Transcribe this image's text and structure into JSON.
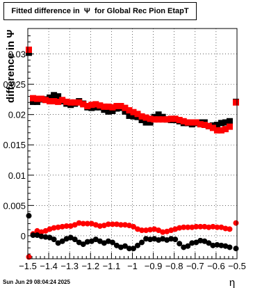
{
  "title": {
    "prefix": "Fitted difference in",
    "symbol": "Ψ",
    "suffix": "for Global Rec Pion EtapT"
  },
  "timestamp": "Sun Jun 29 08:04:24 2025",
  "chart_data": {
    "type": "scatter",
    "xlabel": "η",
    "ylabel": "difference in Ψ",
    "xlim": [
      -1.5,
      -0.5
    ],
    "ylim": [
      -0.0038,
      0.0342
    ],
    "x_ticks": [
      -1.5,
      -1.4,
      -1.3,
      -1.2,
      -1.1,
      -1.0,
      -0.9,
      -0.8,
      -0.7,
      -0.6,
      -0.5
    ],
    "x_tick_labels": [
      "−1.5",
      "−1.4",
      "−1.3",
      "−1.2",
      "−1.1",
      "−1",
      "−0.9",
      "−0.8",
      "−0.7",
      "−0.6",
      "−0.5"
    ],
    "y_ticks": [
      0,
      0.005,
      0.01,
      0.015,
      0.02,
      0.025,
      0.03
    ],
    "y_tick_labels": [
      "0",
      "0.005",
      "0.01",
      "0.015",
      "0.02",
      "0.025",
      "0.03"
    ],
    "grid": true,
    "series": [
      {
        "color": "#000000",
        "marker": "square",
        "x": [
          -1.495,
          -1.475,
          -1.455,
          -1.435,
          -1.415,
          -1.395,
          -1.375,
          -1.355,
          -1.335,
          -1.315,
          -1.295,
          -1.275,
          -1.255,
          -1.235,
          -1.215,
          -1.195,
          -1.175,
          -1.155,
          -1.135,
          -1.115,
          -1.095,
          -1.075,
          -1.055,
          -1.035,
          -1.015,
          -0.995,
          -0.975,
          -0.955,
          -0.935,
          -0.915,
          -0.895,
          -0.875,
          -0.855,
          -0.835,
          -0.815,
          -0.795,
          -0.775,
          -0.755,
          -0.735,
          -0.715,
          -0.695,
          -0.675,
          -0.655,
          -0.635,
          -0.615,
          -0.595,
          -0.575,
          -0.555,
          -0.535,
          -0.505
        ],
        "y": [
          0.0302,
          0.0221,
          0.0221,
          0.0225,
          0.0225,
          0.0228,
          0.0232,
          0.023,
          0.0222,
          0.0218,
          0.0216,
          0.0218,
          0.0222,
          0.0218,
          0.0212,
          0.0211,
          0.0212,
          0.0212,
          0.0208,
          0.0205,
          0.0206,
          0.021,
          0.0211,
          0.0205,
          0.0198,
          0.0197,
          0.0196,
          0.0191,
          0.0187,
          0.0187,
          0.0196,
          0.02,
          0.0196,
          0.0192,
          0.0191,
          0.0191,
          0.0189,
          0.0186,
          0.0186,
          0.0184,
          0.0186,
          0.0187,
          0.0187,
          0.0181,
          0.0182,
          0.0183,
          0.0186,
          0.0187,
          0.0189,
          0.0221
        ]
      },
      {
        "color": "#ff0000",
        "marker": "square",
        "x": [
          -1.495,
          -1.475,
          -1.455,
          -1.435,
          -1.415,
          -1.395,
          -1.375,
          -1.355,
          -1.335,
          -1.315,
          -1.295,
          -1.275,
          -1.255,
          -1.235,
          -1.215,
          -1.195,
          -1.175,
          -1.155,
          -1.135,
          -1.115,
          -1.095,
          -1.075,
          -1.055,
          -1.035,
          -1.015,
          -0.995,
          -0.975,
          -0.955,
          -0.935,
          -0.915,
          -0.895,
          -0.875,
          -0.855,
          -0.835,
          -0.815,
          -0.795,
          -0.775,
          -0.755,
          -0.735,
          -0.715,
          -0.695,
          -0.675,
          -0.655,
          -0.635,
          -0.615,
          -0.595,
          -0.575,
          -0.555,
          -0.535,
          -0.505
        ],
        "y": [
          0.0307,
          0.0227,
          0.0226,
          0.0226,
          0.0224,
          0.0222,
          0.0222,
          0.0221,
          0.0224,
          0.0221,
          0.022,
          0.022,
          0.022,
          0.0217,
          0.0214,
          0.0216,
          0.0217,
          0.0215,
          0.0213,
          0.0213,
          0.0212,
          0.0214,
          0.0214,
          0.0211,
          0.0207,
          0.0204,
          0.0201,
          0.0197,
          0.0195,
          0.0193,
          0.0192,
          0.0192,
          0.0192,
          0.0192,
          0.0193,
          0.0193,
          0.0191,
          0.0189,
          0.0187,
          0.0187,
          0.0187,
          0.0184,
          0.0183,
          0.0181,
          0.0178,
          0.0174,
          0.0174,
          0.0176,
          0.018,
          0.022
        ]
      },
      {
        "color": "#ff0000",
        "marker": "circle",
        "x": [
          -1.495,
          -1.475,
          -1.455,
          -1.435,
          -1.415,
          -1.395,
          -1.375,
          -1.355,
          -1.335,
          -1.315,
          -1.295,
          -1.275,
          -1.255,
          -1.235,
          -1.215,
          -1.195,
          -1.175,
          -1.155,
          -1.135,
          -1.115,
          -1.095,
          -1.075,
          -1.055,
          -1.035,
          -1.015,
          -0.995,
          -0.975,
          -0.955,
          -0.935,
          -0.915,
          -0.895,
          -0.875,
          -0.855,
          -0.835,
          -0.815,
          -0.795,
          -0.775,
          -0.755,
          -0.735,
          -0.715,
          -0.695,
          -0.675,
          -0.655,
          -0.635,
          -0.615,
          -0.595,
          -0.575,
          -0.555,
          -0.535,
          -0.505
        ],
        "y": [
          -0.0035,
          0.0003,
          0.0008,
          0.0006,
          0.0008,
          0.0011,
          0.0013,
          0.0014,
          0.0015,
          0.0016,
          0.0016,
          0.0018,
          0.0021,
          0.002,
          0.002,
          0.002,
          0.0018,
          0.0016,
          0.0017,
          0.0019,
          0.0019,
          0.0019,
          0.0018,
          0.0018,
          0.0017,
          0.0015,
          0.0011,
          0.0009,
          0.0009,
          0.001,
          0.0011,
          0.0009,
          0.0006,
          0.0007,
          0.0009,
          0.0011,
          0.0013,
          0.0014,
          0.0014,
          0.0014,
          0.0015,
          0.0015,
          0.0015,
          0.0014,
          0.0015,
          0.0014,
          0.0014,
          0.0012,
          0.0011,
          0.0021
        ]
      },
      {
        "color": "#000000",
        "marker": "circle",
        "x": [
          -1.495,
          -1.475,
          -1.455,
          -1.435,
          -1.415,
          -1.395,
          -1.375,
          -1.355,
          -1.335,
          -1.315,
          -1.295,
          -1.275,
          -1.255,
          -1.235,
          -1.215,
          -1.195,
          -1.175,
          -1.155,
          -1.135,
          -1.115,
          -1.095,
          -1.075,
          -1.055,
          -1.035,
          -1.015,
          -0.995,
          -0.975,
          -0.955,
          -0.935,
          -0.915,
          -0.895,
          -0.875,
          -0.855,
          -0.835,
          -0.815,
          -0.795,
          -0.775,
          -0.755,
          -0.735,
          -0.715,
          -0.695,
          -0.675,
          -0.655,
          -0.635,
          -0.615,
          -0.595,
          -0.575,
          -0.555,
          -0.535,
          -0.505
        ],
        "y": [
          0.0033,
          0.0001,
          0.0001,
          -0.0001,
          -0.0002,
          -0.0003,
          -0.0006,
          -0.0012,
          -0.0009,
          -0.0005,
          -0.0003,
          -0.0006,
          -0.0011,
          -0.0014,
          -0.001,
          -0.0009,
          -0.0006,
          -0.0009,
          -0.0012,
          -0.0009,
          -0.0011,
          -0.0016,
          -0.0019,
          -0.0017,
          -0.0021,
          -0.0021,
          -0.0016,
          -0.0011,
          -0.0005,
          -0.0006,
          -0.0005,
          -0.0007,
          -0.0005,
          -0.0007,
          -0.0005,
          -0.0006,
          -0.0013,
          -0.0019,
          -0.0017,
          -0.0012,
          -0.0011,
          -0.0008,
          -0.0009,
          -0.0012,
          -0.0016,
          -0.0015,
          -0.0016,
          -0.0017,
          -0.0019,
          -0.0021
        ]
      }
    ]
  }
}
